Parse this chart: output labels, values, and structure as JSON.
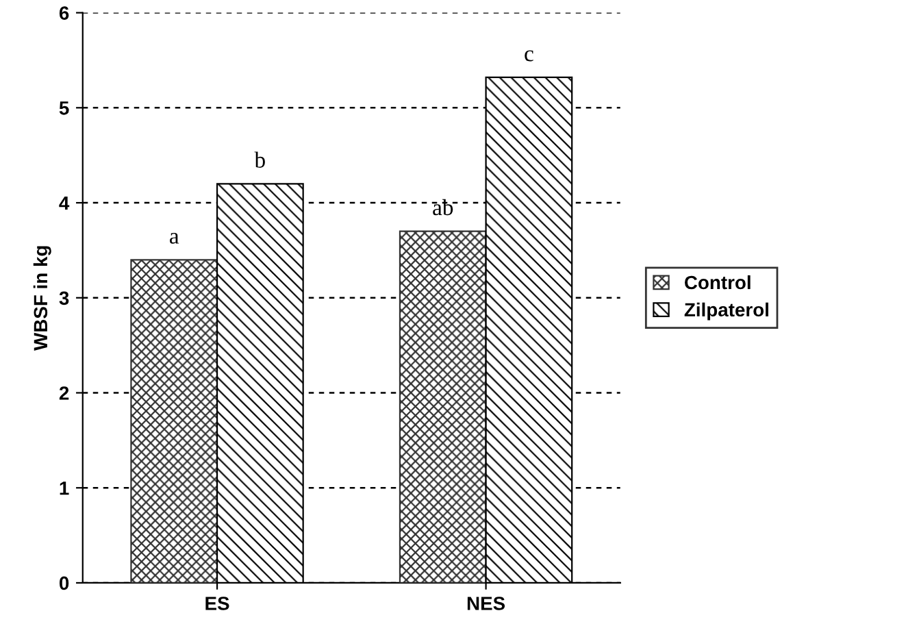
{
  "chart_data": {
    "type": "bar",
    "ylabel": "WBSF in kg",
    "categories": [
      "ES",
      "NES"
    ],
    "series": [
      {
        "name": "Control",
        "color": "#333333",
        "values": [
          3.4,
          3.7
        ]
      },
      {
        "name": "Zilpaterol",
        "color": "#000000",
        "values": [
          4.2,
          5.32
        ]
      }
    ],
    "annotations": [
      "a",
      "b",
      "ab",
      "c"
    ],
    "ylim": [
      0,
      6
    ],
    "yticks": [
      0,
      1,
      2,
      3,
      4,
      5,
      6
    ],
    "grid": "y",
    "legend": "right"
  }
}
